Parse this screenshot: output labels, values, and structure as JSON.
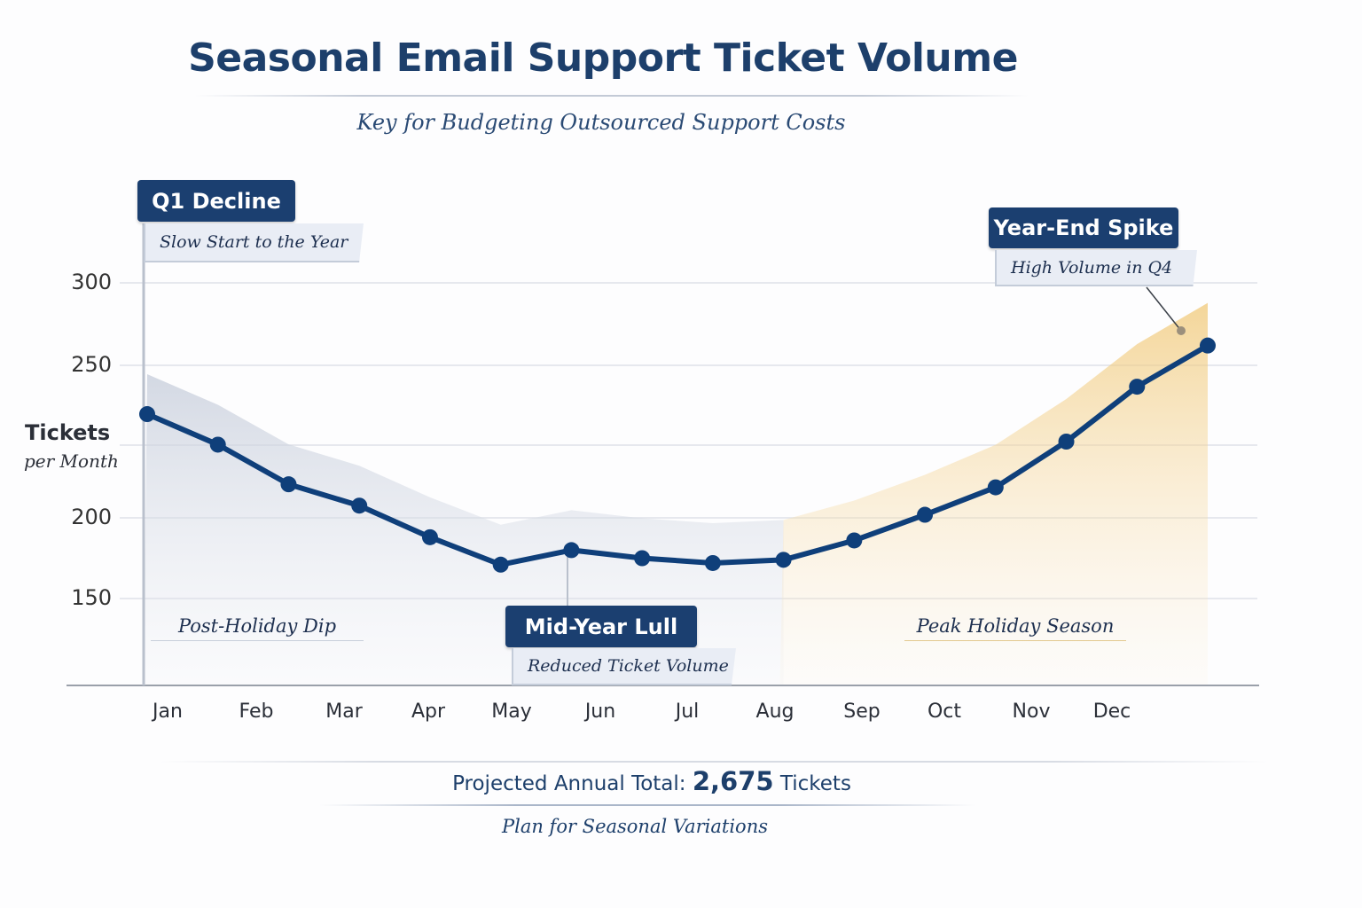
{
  "chart_data": {
    "type": "line",
    "title": "Seasonal Email Support Ticket Volume",
    "subtitle": "Key for Budgeting Outsourced Support Costs",
    "ylabel": "Tickets",
    "ylabel_sub": "per Month",
    "xlabel": "",
    "x_tick_labels": [
      "Jan",
      "Feb",
      "Mar",
      "Apr",
      "May",
      "Jun",
      "Jul",
      "Aug",
      "Sep",
      "Oct",
      "Nov",
      "Dec"
    ],
    "y_tick_labels": [
      "300",
      "250",
      "200",
      "150"
    ],
    "ylim": [
      120,
      310
    ],
    "grid": true,
    "series": [
      {
        "values": [
          234,
          224,
          211,
          204,
          188,
          171,
          180,
          175,
          172,
          174,
          186,
          201,
          210,
          225,
          243,
          262
        ],
        "color": "#0f3f7a"
      }
    ],
    "regions": [
      {
        "label": "Post-Holiday Dip",
        "color": "#c9cfdc"
      },
      {
        "label": "Peak Holiday Season",
        "color": "#f1c878"
      }
    ],
    "annotations": [
      {
        "title": "Q1 Decline",
        "text": "Slow Start to the Year"
      },
      {
        "title": "Mid-Year Lull",
        "text": "Reduced Ticket Volume"
      },
      {
        "title": "Year-End Spike",
        "text": "High Volume in Q4"
      }
    ]
  },
  "footer": {
    "total_prefix": "Projected Annual Total:",
    "total_value": "2,675",
    "total_suffix": "Tickets",
    "note": "Plan for Seasonal Variations"
  }
}
